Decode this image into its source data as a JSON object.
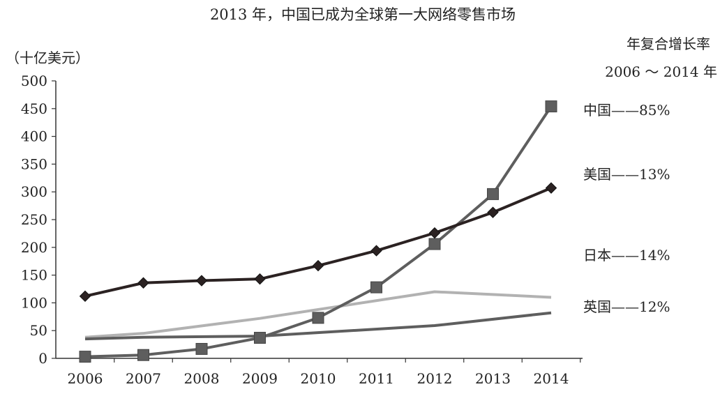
{
  "chart_data": {
    "type": "line",
    "title": "2013 年，中国已成为全球第一大网络零售市场",
    "ylabel": "（十亿美元）",
    "legend_title": [
      "年复合增长率",
      "2006 ～ 2014 年"
    ],
    "categories": [
      "2006",
      "2007",
      "2008",
      "2009",
      "2010",
      "2011",
      "2012",
      "2013",
      "2014"
    ],
    "ylim": [
      0,
      500
    ],
    "yticks": [
      0,
      50,
      100,
      150,
      200,
      250,
      300,
      350,
      400,
      450,
      500
    ],
    "series": [
      {
        "name": "中国",
        "cagr": "85%",
        "label": "中国——85%",
        "color": "#5e5e5e",
        "marker": "square",
        "values": [
          3,
          6,
          17,
          37,
          73,
          128,
          206,
          296,
          454
        ]
      },
      {
        "name": "美国",
        "cagr": "13%",
        "label": "美国——13%",
        "color": "#2b2222",
        "marker": "diamond",
        "values": [
          112,
          136,
          140,
          143,
          167,
          194,
          226,
          263,
          307
        ]
      },
      {
        "name": "日本",
        "cagr": "14%",
        "label": "日本——14%",
        "color": "#b2b2b2",
        "marker": "none",
        "values": [
          38,
          45,
          null,
          72,
          null,
          null,
          120,
          null,
          110
        ]
      },
      {
        "name": "英国",
        "cagr": "12%",
        "label": "英国——12%",
        "color": "#5e5e5e",
        "marker": "none",
        "values": [
          35,
          38,
          null,
          40,
          null,
          null,
          59,
          null,
          82
        ]
      }
    ]
  }
}
